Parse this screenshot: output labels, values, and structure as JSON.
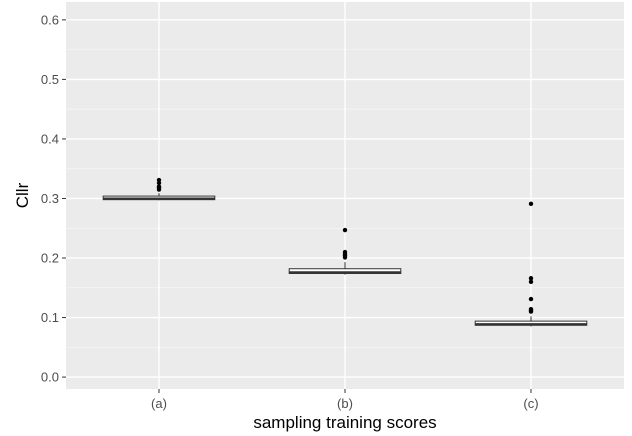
{
  "chart_data": {
    "type": "box",
    "xlabel": "sampling training scores",
    "ylabel": "Cllr",
    "ylim": [
      -0.02,
      0.63
    ],
    "yticks": [
      0.0,
      0.1,
      0.2,
      0.3,
      0.4,
      0.5,
      0.6
    ],
    "ytick_labels": [
      "0.0",
      "0.1",
      "0.2",
      "0.3",
      "0.4",
      "0.5",
      "0.6"
    ],
    "grid": true,
    "categories": [
      "(a)",
      "(b)",
      "(c)"
    ],
    "boxes": [
      {
        "category": "(a)",
        "whisker_low": 0.297,
        "q1": 0.298,
        "median": 0.3,
        "q3": 0.304,
        "whisker_high": 0.309,
        "outliers": [
          0.315,
          0.318,
          0.32,
          0.326,
          0.331
        ]
      },
      {
        "category": "(b)",
        "whisker_low": 0.172,
        "q1": 0.174,
        "median": 0.176,
        "q3": 0.182,
        "whisker_high": 0.193,
        "outliers": [
          0.201,
          0.204,
          0.207,
          0.21,
          0.247
        ]
      },
      {
        "category": "(c)",
        "whisker_low": 0.085,
        "q1": 0.087,
        "median": 0.089,
        "q3": 0.094,
        "whisker_high": 0.102,
        "outliers": [
          0.11,
          0.112,
          0.114,
          0.131,
          0.16,
          0.166,
          0.291
        ]
      }
    ]
  },
  "colors": {
    "panel": "#ebebeb",
    "grid_major": "#ffffff",
    "grid_minor": "#f5f5f5",
    "box_fill": "#ffffff",
    "box_stroke": "#333333",
    "outlier": "#000000"
  }
}
